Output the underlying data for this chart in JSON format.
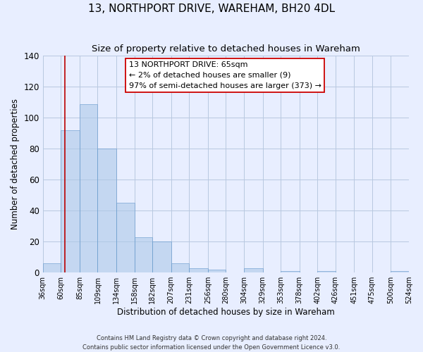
{
  "title": "13, NORTHPORT DRIVE, WAREHAM, BH20 4DL",
  "subtitle": "Size of property relative to detached houses in Wareham",
  "xlabel": "Distribution of detached houses by size in Wareham",
  "ylabel": "Number of detached properties",
  "bar_edges": [
    36,
    60,
    85,
    109,
    134,
    158,
    182,
    207,
    231,
    256,
    280,
    304,
    329,
    353,
    378,
    402,
    426,
    451,
    475,
    500,
    524
  ],
  "bar_heights": [
    6,
    92,
    109,
    80,
    45,
    23,
    20,
    6,
    3,
    2,
    0,
    3,
    0,
    1,
    0,
    1,
    0,
    0,
    0,
    1
  ],
  "tick_labels": [
    "36sqm",
    "60sqm",
    "85sqm",
    "109sqm",
    "134sqm",
    "158sqm",
    "182sqm",
    "207sqm",
    "231sqm",
    "256sqm",
    "280sqm",
    "304sqm",
    "329sqm",
    "353sqm",
    "378sqm",
    "402sqm",
    "426sqm",
    "451sqm",
    "475sqm",
    "500sqm",
    "524sqm"
  ],
  "bar_color": "#adc8e8",
  "bar_edge_color": "#6699cc",
  "bar_alpha": 0.6,
  "vline_x": 65,
  "vline_color": "#bb0000",
  "ylim": [
    0,
    140
  ],
  "yticks": [
    0,
    20,
    40,
    60,
    80,
    100,
    120,
    140
  ],
  "annotation_line1": "13 NORTHPORT DRIVE: 65sqm",
  "annotation_line2": "← 2% of detached houses are smaller (9)",
  "annotation_line3": "97% of semi-detached houses are larger (373) →",
  "annotation_box_edgecolor": "#cc0000",
  "annotation_box_facecolor": "#ffffff",
  "footer_line1": "Contains HM Land Registry data © Crown copyright and database right 2024.",
  "footer_line2": "Contains public sector information licensed under the Open Government Licence v3.0.",
  "background_color": "#e8eeff",
  "grid_color": "#b8c8e0",
  "title_fontsize": 11,
  "subtitle_fontsize": 9.5,
  "axis_label_fontsize": 8.5,
  "tick_fontsize": 7,
  "footer_fontsize": 6,
  "annotation_fontsize": 8,
  "ylabel_fontsize": 8.5
}
